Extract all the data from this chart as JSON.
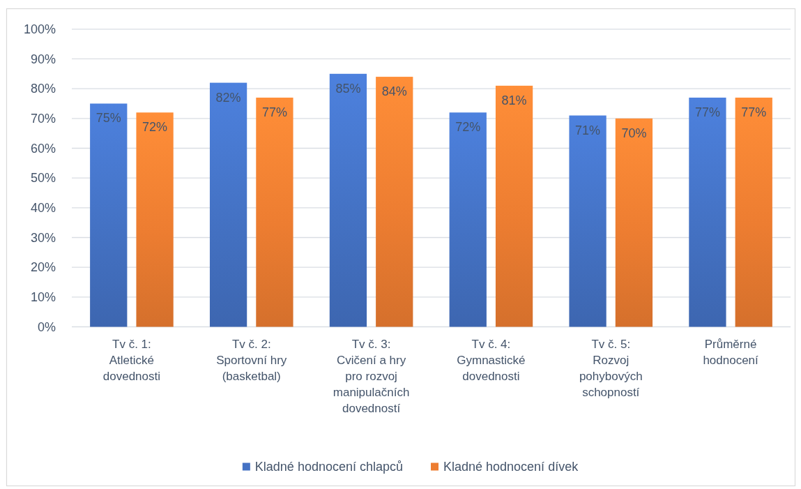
{
  "chart_data": {
    "type": "bar",
    "categories": [
      "Tv č. 1: Atletické dovednosti",
      "Tv č. 2: Sportovní hry (basketbal)",
      "Tv č. 3: Cvičení a hry pro rozvoj manipulačních dovedností",
      "Tv č. 4: Gymnastické dovednosti",
      "Tv č. 5: Rozvoj pohybových schopností",
      "Průměrné hodnocení"
    ],
    "series": [
      {
        "name": "Kladné hodnocení chlapců",
        "color": "#4472c4",
        "values": [
          75,
          82,
          85,
          72,
          71,
          77
        ],
        "value_labels": [
          "75%",
          "82%",
          "85%",
          "72%",
          "71%",
          "77%"
        ]
      },
      {
        "name": "Kladné hodnocení dívek",
        "color": "#ed7d31",
        "values": [
          72,
          77,
          84,
          81,
          70,
          77
        ],
        "value_labels": [
          "72%",
          "77%",
          "84%",
          "81%",
          "70%",
          "77%"
        ]
      }
    ],
    "ylim": [
      0,
      100
    ],
    "yticks": [
      {
        "value": 0,
        "label": "0%"
      },
      {
        "value": 10,
        "label": "10%"
      },
      {
        "value": 20,
        "label": "20%"
      },
      {
        "value": 30,
        "label": "30%"
      },
      {
        "value": 40,
        "label": "40%"
      },
      {
        "value": 50,
        "label": "50%"
      },
      {
        "value": 60,
        "label": "60%"
      },
      {
        "value": 70,
        "label": "70%"
      },
      {
        "value": 80,
        "label": "80%"
      },
      {
        "value": 90,
        "label": "90%"
      },
      {
        "value": 100,
        "label": "100%"
      }
    ],
    "grid": "y",
    "legend": "bottom"
  }
}
